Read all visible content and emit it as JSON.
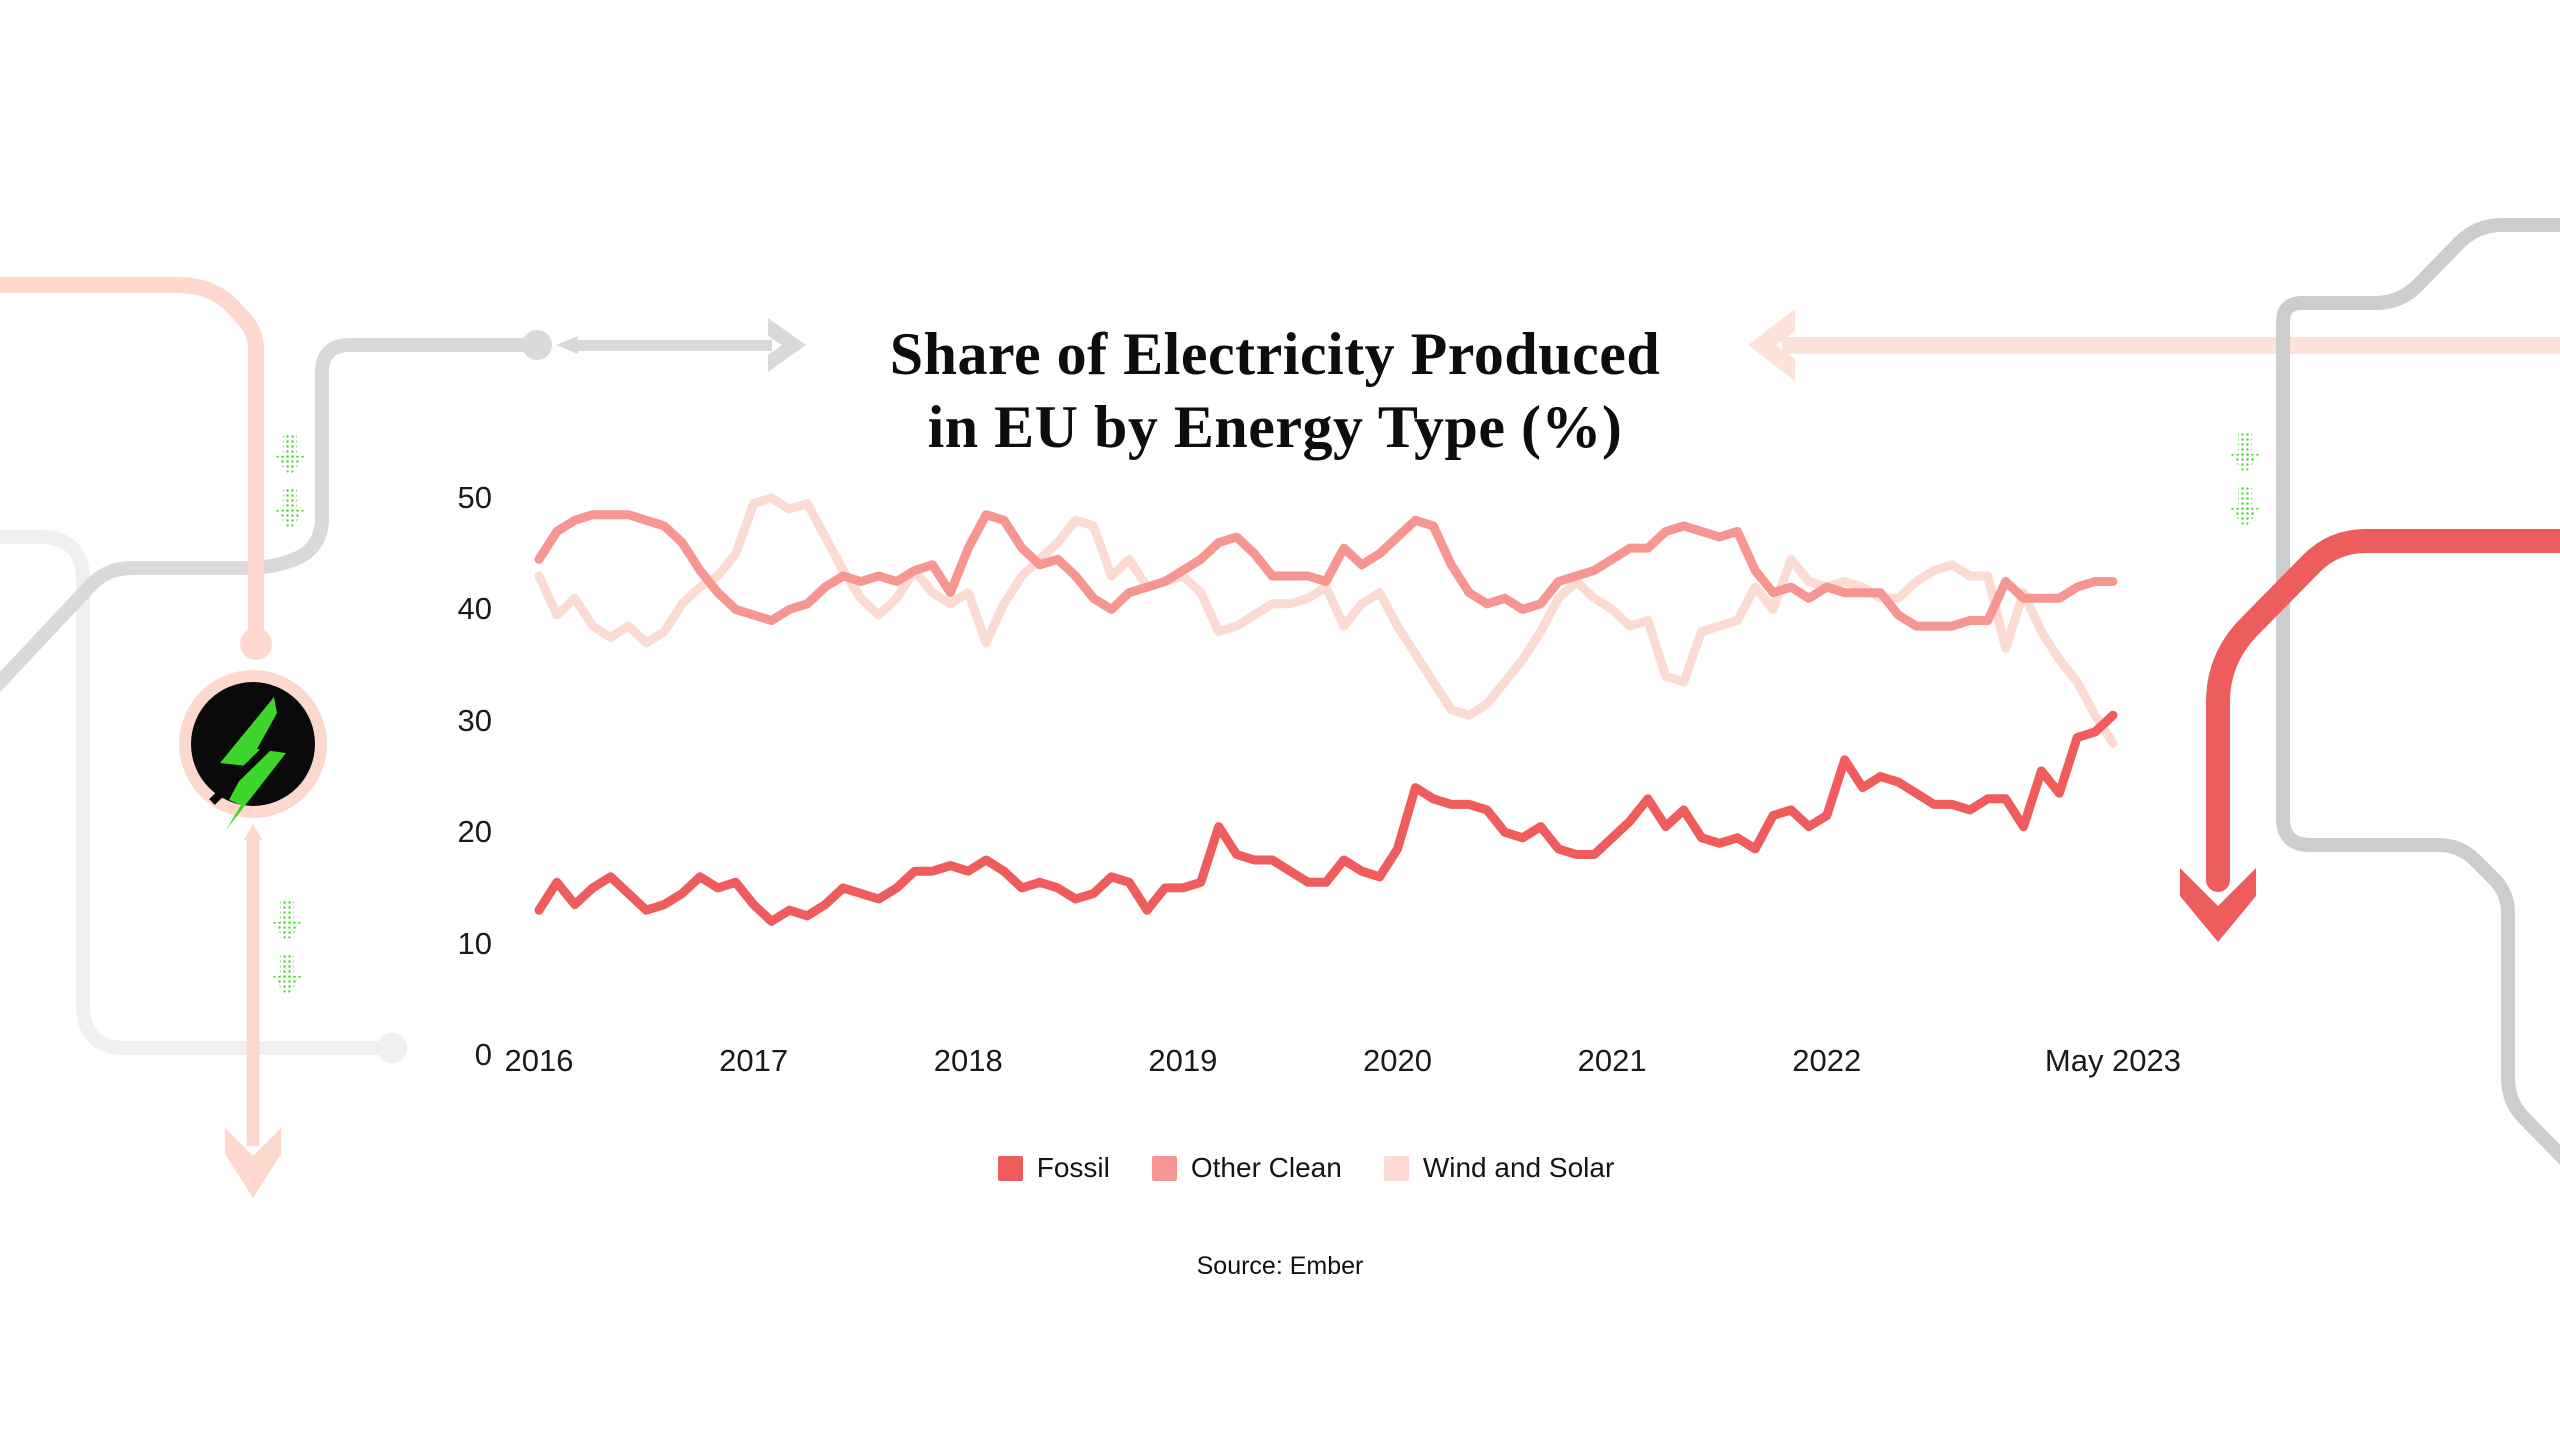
{
  "title": {
    "line1": "Share of Electricity Produced",
    "line2": "in EU by Energy Type (%)"
  },
  "source": "Source: Ember",
  "colors": {
    "fossil": "#ee5c5c",
    "other_clean": "#f79690",
    "wind_solar": "#fcdcd2",
    "deco_peach": "#fcd9cc",
    "deco_peach_light": "#fde4da",
    "deco_gray": "#d9d9d9",
    "deco_gray_right": "#cdcdcd",
    "deco_gray_faint": "#f1f0ef",
    "deco_red": "#ee5d5d",
    "bolt_green": "#3fd62c",
    "dotted_green": "#52d83a",
    "icon_bg": "#0a0a0a",
    "text": "#0d0d0d"
  },
  "icon": {
    "name": "lightning-bolt-badge"
  },
  "chart_data": {
    "type": "line",
    "title": "Share of Electricity Produced in EU by Energy Type (%)",
    "xlabel": "",
    "ylabel": "",
    "x_start": "2016-01",
    "x_end": "2023-05",
    "frequency": "monthly",
    "ylim": [
      0,
      50
    ],
    "grid": false,
    "legend_position": "bottom",
    "y_ticks": [
      "0",
      "10",
      "20",
      "30",
      "40",
      "50"
    ],
    "x_ticks": [
      {
        "label": "2016",
        "month_index": 0
      },
      {
        "label": "2017",
        "month_index": 12
      },
      {
        "label": "2018",
        "month_index": 24
      },
      {
        "label": "2019",
        "month_index": 36
      },
      {
        "label": "2020",
        "month_index": 48
      },
      {
        "label": "2021",
        "month_index": 60
      },
      {
        "label": "2022",
        "month_index": 72
      },
      {
        "label": "May 2023",
        "month_index": 88
      }
    ],
    "series": [
      {
        "name": "Wind and Solar",
        "color": "#fcdcd2",
        "values": [
          43,
          39.5,
          41,
          38.5,
          37.5,
          38.5,
          37,
          38,
          40.5,
          42,
          43,
          45,
          49.5,
          50,
          49,
          49.5,
          46.5,
          43.5,
          41,
          39.5,
          41,
          43.5,
          41.5,
          40.5,
          41.5,
          37,
          40.5,
          43,
          44.5,
          46,
          48,
          47.5,
          43,
          44.5,
          42,
          42.5,
          43,
          41.5,
          38,
          38.5,
          39.5,
          40.5,
          40.5,
          41,
          42,
          38.5,
          40.5,
          41.5,
          38.5,
          36,
          33.5,
          31,
          30.5,
          31.5,
          33.5,
          35.5,
          38,
          41,
          42.5,
          41,
          40,
          38.5,
          39,
          34,
          33.5,
          38,
          38.5,
          39,
          42,
          40,
          44.5,
          42.5,
          42,
          42.5,
          42,
          41,
          41,
          42.5,
          43.5,
          44,
          43,
          43,
          36.5,
          41.5,
          38,
          35.5,
          33.5,
          30.5,
          28
        ]
      },
      {
        "name": "Other Clean",
        "color": "#f79690",
        "values": [
          44.5,
          47,
          48,
          48.5,
          48.5,
          48.5,
          48,
          47.5,
          46,
          43.5,
          41.5,
          40,
          39.5,
          39,
          40,
          40.5,
          42,
          43,
          42.5,
          43,
          42.5,
          43.5,
          44,
          41.5,
          45.5,
          48.5,
          48,
          45.5,
          44,
          44.5,
          43,
          41,
          40,
          41.5,
          42,
          42.5,
          43.5,
          44.5,
          46,
          46.5,
          45,
          43,
          43,
          43,
          42.5,
          45.5,
          44,
          45,
          46.5,
          48,
          47.5,
          44,
          41.5,
          40.5,
          41,
          40,
          40.5,
          42.5,
          43,
          43.5,
          44.5,
          45.5,
          45.5,
          47,
          47.5,
          47,
          46.5,
          47,
          43.5,
          41.5,
          42,
          41,
          42,
          41.5,
          41.5,
          41.5,
          39.5,
          38.5,
          38.5,
          38.5,
          39,
          39,
          42.5,
          41,
          41,
          41,
          42,
          42.5,
          42.5
        ]
      },
      {
        "name": "Fossil",
        "color": "#ee5c5c",
        "values": [
          13,
          15.5,
          13.5,
          15,
          16,
          14.5,
          13,
          13.5,
          14.5,
          16,
          15,
          15.5,
          13.5,
          12,
          13,
          12.5,
          13.5,
          15,
          14.5,
          14,
          15,
          16.5,
          16.5,
          17,
          16.5,
          17.5,
          16.5,
          15,
          15.5,
          15,
          14,
          14.5,
          16,
          15.5,
          13,
          15,
          15,
          15.5,
          20.5,
          18,
          17.5,
          17.5,
          16.5,
          15.5,
          15.5,
          17.5,
          16.5,
          16,
          18.5,
          24,
          23,
          22.5,
          22.5,
          22,
          20,
          19.5,
          20.5,
          18.5,
          18,
          18,
          19.5,
          21,
          23,
          20.5,
          22,
          19.5,
          19,
          19.5,
          18.5,
          21.5,
          22,
          20.5,
          21.5,
          26.5,
          24,
          25,
          24.5,
          23.5,
          22.5,
          22.5,
          22,
          23,
          23,
          20.5,
          25.5,
          23.5,
          28.5,
          29,
          30.5
        ]
      }
    ],
    "legend_order": [
      "Fossil",
      "Other Clean",
      "Wind and Solar"
    ]
  }
}
